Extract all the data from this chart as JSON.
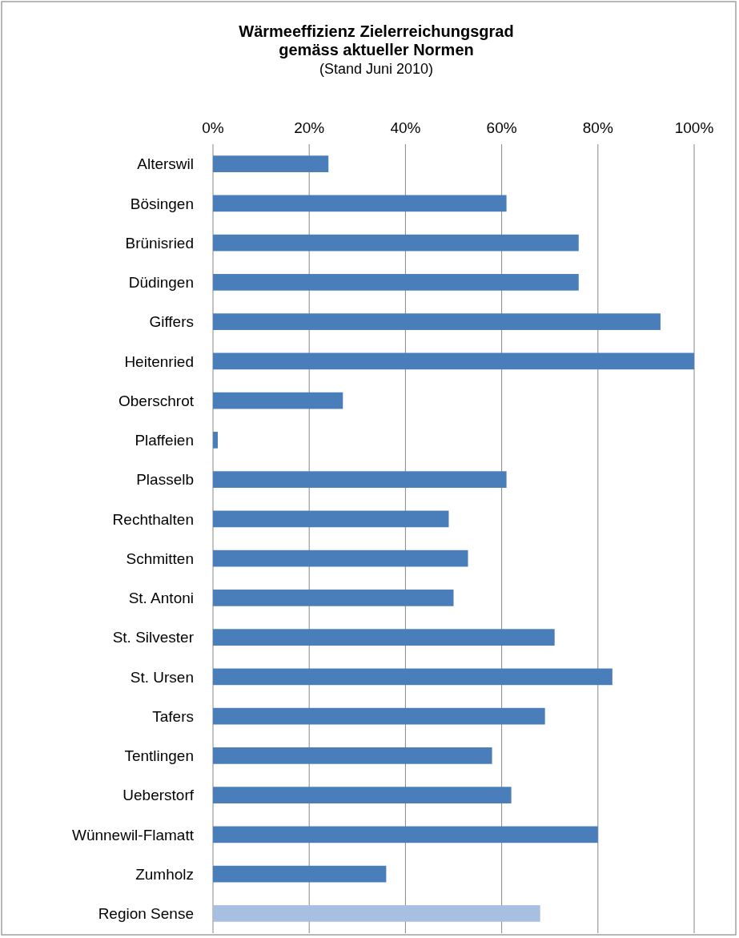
{
  "chart_data": {
    "type": "bar",
    "orientation": "horizontal",
    "title": "Wärmeeffizienz Zielerreichungsgrad\ngemäss aktueller Normen",
    "subtitle": "(Stand Juni 2010)",
    "categories": [
      "Alterswil",
      "Bösingen",
      "Brünisried",
      "Düdingen",
      "Giffers",
      "Heitenried",
      "Oberschrot",
      "Plaffeien",
      "Plasselb",
      "Rechthalten",
      "Schmitten",
      "St. Antoni",
      "St. Silvester",
      "St. Ursen",
      "Tafers",
      "Tentlingen",
      "Ueberstorf",
      "Wünnewil-Flamatt",
      "Zumholz",
      "Region Sense"
    ],
    "values": [
      24,
      61,
      76,
      76,
      93,
      100,
      27,
      1,
      61,
      49,
      53,
      50,
      71,
      83,
      69,
      58,
      62,
      80,
      36,
      68
    ],
    "colors": [
      "#4a7ebb",
      "#4a7ebb",
      "#4a7ebb",
      "#4a7ebb",
      "#4a7ebb",
      "#4a7ebb",
      "#4a7ebb",
      "#4a7ebb",
      "#4a7ebb",
      "#4a7ebb",
      "#4a7ebb",
      "#4a7ebb",
      "#4a7ebb",
      "#4a7ebb",
      "#4a7ebb",
      "#4a7ebb",
      "#4a7ebb",
      "#4a7ebb",
      "#4a7ebb",
      "#a9bfe2"
    ],
    "xlim": [
      0,
      100
    ],
    "xticks": [
      {
        "value": 0,
        "label": "0%"
      },
      {
        "value": 20,
        "label": "20%"
      },
      {
        "value": 40,
        "label": "40%"
      },
      {
        "value": 60,
        "label": "60%"
      },
      {
        "value": 80,
        "label": "80%"
      },
      {
        "value": 100,
        "label": "100%"
      }
    ],
    "grid": "x"
  }
}
